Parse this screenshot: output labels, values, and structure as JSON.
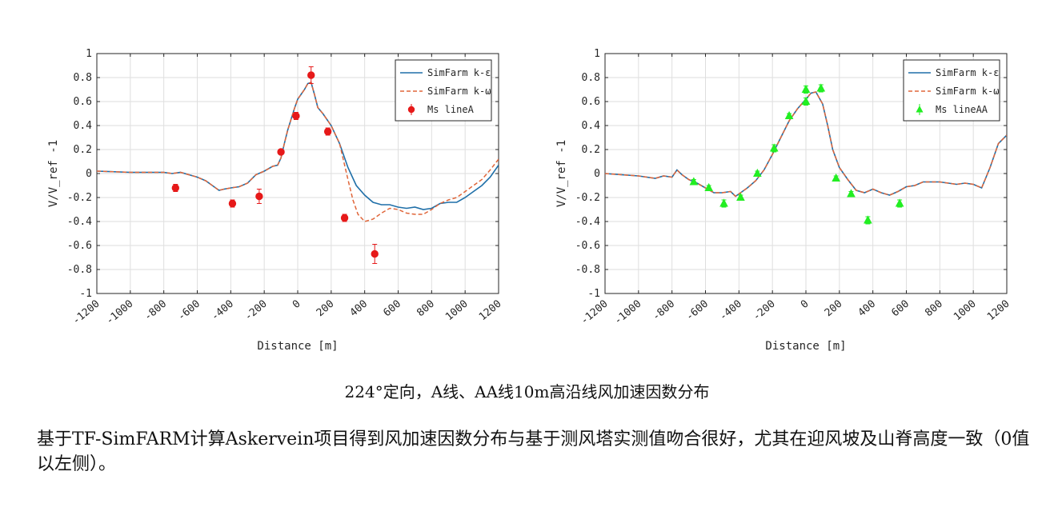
{
  "caption": "224°定向，A线、AA线10m高沿线风加速因数分布",
  "description": "基于TF-SimFARM计算Askervein项目得到风加速因数分布与基于测风塔实测值吻合很好，尤其在迎风坡及山脊高度一致（0值以左侧）。",
  "colors": {
    "line_k_epsilon": "#1f6fa8",
    "line_k_omega": "#e0663a",
    "marker_lineA": "#e61919",
    "marker_lineAA": "#22ee22"
  },
  "chart_data": [
    {
      "type": "line",
      "xlabel": "Distance [m]",
      "ylabel": "V/V_ref -1",
      "xlim": [
        -1200,
        1200
      ],
      "ylim": [
        -1,
        1
      ],
      "xticks": [
        "-1200",
        "-1000",
        "-800",
        "-600",
        "-400",
        "-200",
        "0",
        "200",
        "400",
        "600",
        "800",
        "1000",
        "1200"
      ],
      "yticks": [
        "1",
        "0.8",
        "0.6",
        "0.4",
        "0.2",
        "0",
        "-0.2",
        "-0.4",
        "-0.6",
        "-0.8",
        "-1"
      ],
      "grid": true,
      "legend_position": "top-right",
      "series": [
        {
          "name": "SimFarm k-ε",
          "style": "solid",
          "x": [
            -1200,
            -1000,
            -800,
            -750,
            -700,
            -600,
            -550,
            -500,
            -470,
            -440,
            -400,
            -350,
            -300,
            -250,
            -200,
            -150,
            -120,
            -100,
            -80,
            -60,
            -40,
            -20,
            0,
            20,
            40,
            60,
            80,
            100,
            120,
            150,
            200,
            250,
            300,
            350,
            400,
            450,
            500,
            550,
            600,
            650,
            700,
            750,
            800,
            850,
            900,
            950,
            1000,
            1050,
            1100,
            1150,
            1200
          ],
          "y": [
            0.02,
            0.01,
            0.01,
            0.0,
            0.01,
            -0.03,
            -0.06,
            -0.11,
            -0.14,
            -0.13,
            -0.12,
            -0.11,
            -0.08,
            -0.01,
            0.02,
            0.06,
            0.07,
            0.13,
            0.25,
            0.36,
            0.45,
            0.54,
            0.62,
            0.66,
            0.7,
            0.75,
            0.76,
            0.66,
            0.55,
            0.5,
            0.4,
            0.25,
            0.05,
            -0.1,
            -0.18,
            -0.24,
            -0.26,
            -0.26,
            -0.28,
            -0.29,
            -0.28,
            -0.3,
            -0.29,
            -0.25,
            -0.24,
            -0.24,
            -0.2,
            -0.15,
            -0.1,
            -0.03,
            0.07
          ]
        },
        {
          "name": "SimFarm k-ω",
          "style": "dashed",
          "x": [
            -1200,
            -1000,
            -800,
            -750,
            -700,
            -600,
            -550,
            -500,
            -470,
            -440,
            -400,
            -350,
            -300,
            -250,
            -200,
            -150,
            -120,
            -100,
            -80,
            -60,
            -40,
            -20,
            0,
            20,
            40,
            60,
            80,
            100,
            120,
            150,
            200,
            250,
            300,
            330,
            360,
            400,
            450,
            500,
            550,
            600,
            650,
            700,
            750,
            800,
            850,
            900,
            950,
            1000,
            1050,
            1100,
            1150,
            1200
          ],
          "y": [
            0.02,
            0.01,
            0.01,
            0.0,
            0.01,
            -0.03,
            -0.06,
            -0.11,
            -0.14,
            -0.13,
            -0.12,
            -0.11,
            -0.08,
            -0.01,
            0.02,
            0.06,
            0.07,
            0.13,
            0.25,
            0.36,
            0.45,
            0.54,
            0.62,
            0.66,
            0.7,
            0.75,
            0.76,
            0.66,
            0.55,
            0.5,
            0.4,
            0.25,
            -0.05,
            -0.22,
            -0.34,
            -0.4,
            -0.38,
            -0.33,
            -0.29,
            -0.3,
            -0.33,
            -0.34,
            -0.34,
            -0.3,
            -0.25,
            -0.22,
            -0.2,
            -0.15,
            -0.1,
            -0.05,
            0.03,
            0.12
          ]
        },
        {
          "name": "Ms lineA",
          "style": "markers",
          "marker": "circle",
          "x": [
            -730,
            -390,
            -230,
            -100,
            -10,
            80,
            180,
            280,
            460
          ],
          "y": [
            -0.12,
            -0.25,
            -0.19,
            0.18,
            0.48,
            0.82,
            0.35,
            -0.37,
            -0.67
          ],
          "err": [
            0.03,
            0.03,
            0.06,
            0.01,
            0.03,
            0.07,
            0.03,
            0.03,
            0.08
          ]
        }
      ]
    },
    {
      "type": "line",
      "xlabel": "Distance [m]",
      "ylabel": "V/V_ref -1",
      "xlim": [
        -1200,
        1200
      ],
      "ylim": [
        -1,
        1
      ],
      "xticks": [
        "-1200",
        "-1000",
        "-800",
        "-600",
        "-400",
        "-200",
        "0",
        "200",
        "400",
        "600",
        "800",
        "1000",
        "1200"
      ],
      "yticks": [
        "1",
        "0.8",
        "0.6",
        "0.4",
        "0.2",
        "0",
        "-0.2",
        "-0.4",
        "-0.6",
        "-0.8",
        "-1"
      ],
      "grid": true,
      "legend_position": "top-right",
      "series": [
        {
          "name": "SimFarm k-ε",
          "style": "solid",
          "x": [
            -1200,
            -1000,
            -900,
            -850,
            -800,
            -770,
            -740,
            -700,
            -650,
            -600,
            -550,
            -500,
            -450,
            -420,
            -400,
            -350,
            -300,
            -250,
            -200,
            -150,
            -100,
            -50,
            0,
            30,
            60,
            100,
            130,
            160,
            200,
            250,
            300,
            350,
            400,
            450,
            500,
            550,
            600,
            650,
            700,
            750,
            800,
            850,
            900,
            950,
            1000,
            1050,
            1100,
            1150,
            1200
          ],
          "y": [
            0.0,
            -0.02,
            -0.04,
            -0.02,
            -0.03,
            0.03,
            -0.01,
            -0.05,
            -0.08,
            -0.12,
            -0.16,
            -0.16,
            -0.15,
            -0.19,
            -0.17,
            -0.12,
            -0.06,
            0.03,
            0.16,
            0.3,
            0.44,
            0.54,
            0.62,
            0.67,
            0.68,
            0.58,
            0.4,
            0.2,
            0.05,
            -0.05,
            -0.14,
            -0.16,
            -0.13,
            -0.16,
            -0.18,
            -0.15,
            -0.11,
            -0.1,
            -0.07,
            -0.07,
            -0.07,
            -0.08,
            -0.09,
            -0.08,
            -0.09,
            -0.12,
            0.05,
            0.25,
            0.32
          ]
        },
        {
          "name": "SimFarm k-ω",
          "style": "dashed",
          "x": [
            -1200,
            -1000,
            -900,
            -850,
            -800,
            -770,
            -740,
            -700,
            -650,
            -600,
            -550,
            -500,
            -450,
            -420,
            -400,
            -350,
            -300,
            -250,
            -200,
            -150,
            -100,
            -50,
            0,
            30,
            60,
            100,
            130,
            160,
            200,
            250,
            300,
            350,
            400,
            450,
            500,
            550,
            600,
            650,
            700,
            750,
            800,
            850,
            900,
            950,
            1000,
            1050,
            1100,
            1150,
            1200
          ],
          "y": [
            0.0,
            -0.02,
            -0.04,
            -0.02,
            -0.03,
            0.03,
            -0.01,
            -0.05,
            -0.08,
            -0.12,
            -0.16,
            -0.16,
            -0.15,
            -0.19,
            -0.17,
            -0.12,
            -0.06,
            0.03,
            0.16,
            0.3,
            0.44,
            0.54,
            0.62,
            0.67,
            0.68,
            0.58,
            0.4,
            0.2,
            0.05,
            -0.05,
            -0.14,
            -0.16,
            -0.13,
            -0.16,
            -0.18,
            -0.15,
            -0.11,
            -0.1,
            -0.07,
            -0.07,
            -0.07,
            -0.08,
            -0.09,
            -0.08,
            -0.09,
            -0.12,
            0.05,
            0.25,
            0.32
          ]
        },
        {
          "name": "Ms lineAA",
          "style": "markers",
          "marker": "triangle",
          "x": [
            -670,
            -580,
            -490,
            -390,
            -290,
            -190,
            -100,
            0,
            0,
            90,
            180,
            270,
            370,
            560
          ],
          "y": [
            -0.07,
            -0.12,
            -0.25,
            -0.2,
            0.0,
            0.21,
            0.48,
            0.7,
            0.6,
            0.71,
            -0.04,
            -0.17,
            -0.39,
            -0.25
          ],
          "err": [
            0.02,
            0.02,
            0.03,
            0.02,
            0.02,
            0.03,
            0.02,
            0.03,
            0.03,
            0.03,
            0.02,
            0.02,
            0.03,
            0.03
          ]
        }
      ]
    }
  ]
}
